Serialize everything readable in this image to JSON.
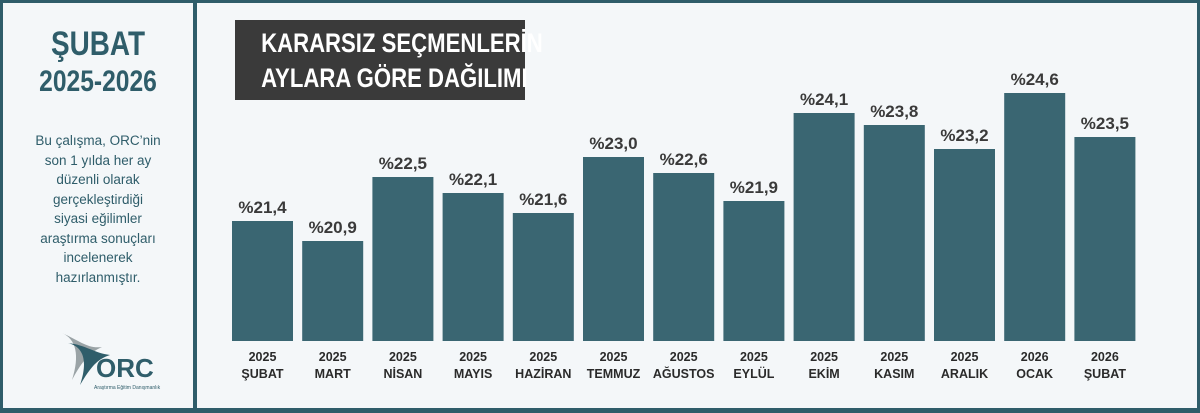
{
  "sidebar": {
    "title_line1": "ŞUBAT",
    "title_line2": "2025-2026",
    "description_lines": [
      "Bu çalışma, ORC’nin",
      "son 1 yılda her ay",
      "düzenli olarak",
      "gerçekleştirdiği",
      "siyasi eğilimler",
      "araştırma sonuçları",
      "incelenerek",
      "hazırlanmıştır."
    ],
    "logo_text": "ORC",
    "logo_subtext": "Araştırma Eğitim Danışmanlık"
  },
  "colors": {
    "frame": "#2f5d6a",
    "bar": "#3a6672",
    "title_box": "#3a3a3a",
    "background": "#f4f7f9"
  },
  "chart_data": {
    "type": "bar",
    "title_lines": [
      "KARARSIZ SEÇMENLERİN",
      "AYLARA GÖRE DAĞILIMI"
    ],
    "categories": [
      [
        "2025",
        "ŞUBAT"
      ],
      [
        "2025",
        "MART"
      ],
      [
        "2025",
        "NİSAN"
      ],
      [
        "2025",
        "MAYIS"
      ],
      [
        "2025",
        "HAZİRAN"
      ],
      [
        "2025",
        "TEMMUZ"
      ],
      [
        "2025",
        "AĞUSTOS"
      ],
      [
        "2025",
        "EYLÜL"
      ],
      [
        "2025",
        "EKİM"
      ],
      [
        "2025",
        "KASIM"
      ],
      [
        "2025",
        "ARALIK"
      ],
      [
        "2026",
        "OCAK"
      ],
      [
        "2026",
        "ŞUBAT"
      ]
    ],
    "values": [
      21.4,
      20.9,
      22.5,
      22.1,
      21.6,
      23.0,
      22.6,
      21.9,
      24.1,
      23.8,
      23.2,
      24.6,
      23.5
    ],
    "labels": [
      "%21,4",
      "%20,9",
      "%22,5",
      "%22,1",
      "%21,6",
      "%23,0",
      "%22,6",
      "%21,9",
      "%24,1",
      "%23,8",
      "%23,2",
      "%24,6",
      "%23,5"
    ],
    "grid": false,
    "legend": "none"
  }
}
